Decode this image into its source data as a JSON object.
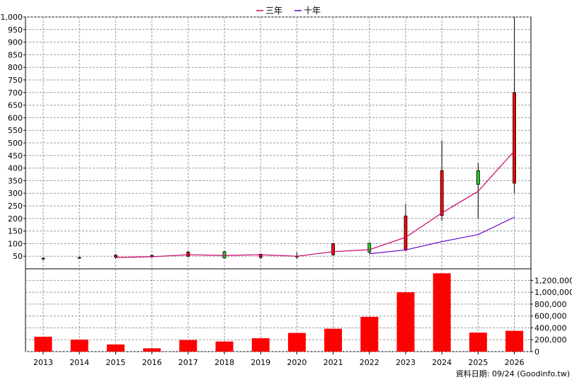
{
  "chart_data": [
    {
      "type": "candlestick",
      "legend": [
        {
          "name": "三年",
          "color": "#cc0066"
        },
        {
          "name": "十年",
          "color": "#6600cc"
        }
      ],
      "categories": [
        "2013",
        "2014",
        "2015",
        "2016",
        "2017",
        "2018",
        "2019",
        "2020",
        "2021",
        "2022",
        "2023",
        "2024",
        "2025",
        "2026"
      ],
      "candles": [
        {
          "open": 42,
          "close": 40,
          "high": 46,
          "low": 33
        },
        {
          "open": 45,
          "close": 44,
          "high": 48,
          "low": 40
        },
        {
          "open": 54,
          "close": 47,
          "high": 59,
          "low": 40
        },
        {
          "open": 53,
          "close": 49,
          "high": 57,
          "low": 45
        },
        {
          "open": 66,
          "close": 50,
          "high": 72,
          "low": 46
        },
        {
          "open": 43,
          "close": 68,
          "high": 72,
          "low": 41
        },
        {
          "open": 58,
          "close": 45,
          "high": 60,
          "low": 40
        },
        {
          "open": 50,
          "close": 50,
          "high": 65,
          "low": 40
        },
        {
          "open": 100,
          "close": 56,
          "high": 103,
          "low": 50
        },
        {
          "open": 66,
          "close": 102,
          "high": 103,
          "low": 60
        },
        {
          "open": 210,
          "close": 75,
          "high": 258,
          "low": 70
        },
        {
          "open": 390,
          "close": 212,
          "high": 510,
          "low": 190
        },
        {
          "open": 335,
          "close": 390,
          "high": 420,
          "low": 200
        },
        {
          "open": 700,
          "close": 340,
          "high": 1000,
          "low": 300
        }
      ],
      "series": [
        {
          "name": "三年",
          "x": [
            "2015",
            "2016",
            "2017",
            "2018",
            "2019",
            "2020",
            "2021",
            "2022",
            "2023",
            "2024",
            "2025",
            "2026"
          ],
          "values": [
            45,
            48,
            56,
            53,
            56,
            50,
            68,
            76,
            125,
            222,
            308,
            468
          ]
        },
        {
          "name": "十年",
          "x": [
            "2022",
            "2023",
            "2024",
            "2025",
            "2026"
          ],
          "values": [
            60,
            75,
            108,
            136,
            205
          ]
        }
      ],
      "ylim": [
        0,
        1000
      ],
      "yticks": [
        "50",
        "100",
        "150",
        "200",
        "250",
        "300",
        "350",
        "400",
        "450",
        "500",
        "550",
        "600",
        "650",
        "700",
        "750",
        "800",
        "850",
        "900",
        "950",
        "1,000"
      ],
      "grid": true,
      "legend_position": "top-center"
    },
    {
      "type": "bar",
      "categories": [
        "2013",
        "2014",
        "2015",
        "2016",
        "2017",
        "2018",
        "2019",
        "2020",
        "2021",
        "2022",
        "2023",
        "2024",
        "2025",
        "2026"
      ],
      "values": [
        250000,
        200000,
        120000,
        55000,
        195000,
        170000,
        225000,
        315000,
        385000,
        585000,
        1000000,
        1320000,
        320000,
        350000
      ],
      "color": "#ff0000",
      "ylim": [
        0,
        1300000
      ],
      "yticks": [
        "0",
        "200,000",
        "400,000",
        "600,000",
        "800,000",
        "1,000,000",
        "1,200,000"
      ],
      "grid": true
    }
  ],
  "source_note": "資料日期: 09/24 (Goodinfo.tw)"
}
